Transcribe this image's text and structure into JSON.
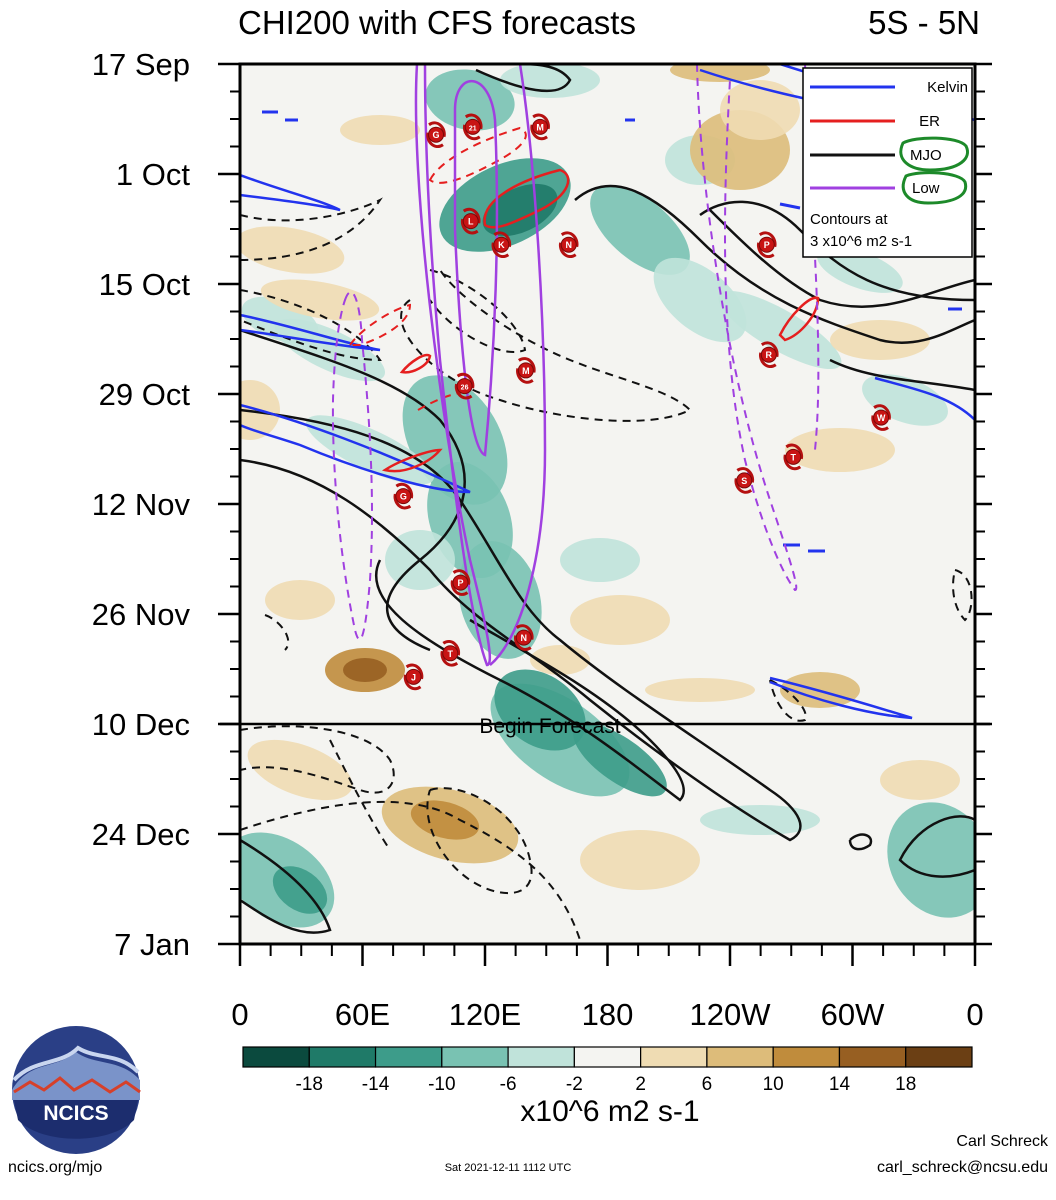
{
  "header": {
    "title": "CHI200 with CFS forecasts",
    "region": "5S - 5N"
  },
  "chart_data": {
    "type": "heatmap",
    "title": "CHI200 with CFS forecasts",
    "y_axis": {
      "ticks": [
        "17 Sep",
        "1 Oct",
        "15 Oct",
        "29 Oct",
        "12 Nov",
        "26 Nov",
        "10 Dec",
        "24 Dec",
        "7 Jan"
      ],
      "range": [
        "2021-09-17",
        "2022-01-07"
      ]
    },
    "x_axis": {
      "ticks": [
        "0",
        "60E",
        "120E",
        "180",
        "120W",
        "60W",
        "0"
      ],
      "range_deg_east": [
        0,
        360
      ]
    },
    "forecast_marker": {
      "date": "2021-12-10",
      "label": "Begin Forecast"
    },
    "colorbar": {
      "labels": [
        "-18",
        "-14",
        "-10",
        "-6",
        "-2",
        "2",
        "6",
        "10",
        "14",
        "18"
      ],
      "colors": [
        "#0b4a3e",
        "#1f7a68",
        "#3d9c8a",
        "#79c2b2",
        "#c0e3da",
        "#f4f4f1",
        "#efdcb3",
        "#ddbc7a",
        "#c08c3c",
        "#975f22",
        "#6b3f14"
      ],
      "units": "x10^6 m2 s-1"
    },
    "legend": {
      "placement": "top-right",
      "entries": [
        {
          "name": "Kelvin",
          "color": "#2233ee"
        },
        {
          "name": "ER",
          "color": "#e51f1f"
        },
        {
          "name": "MJO",
          "color": "#111111"
        },
        {
          "name": "Low",
          "color": "#a040e0"
        }
      ],
      "note_line1": "Contours at",
      "note_line2": "3 x10^6 m2 s-1"
    },
    "storms": [
      {
        "label": "G",
        "lon": 96,
        "date": "2021-09-26"
      },
      {
        "label": "21",
        "lon": 114,
        "date": "2021-09-25"
      },
      {
        "label": "M",
        "lon": 147,
        "date": "2021-09-25"
      },
      {
        "label": "L",
        "lon": 113,
        "date": "2021-10-07"
      },
      {
        "label": "K",
        "lon": 128,
        "date": "2021-10-10"
      },
      {
        "label": "N",
        "lon": 161,
        "date": "2021-10-10"
      },
      {
        "label": "P",
        "lon": 258,
        "date": "2021-10-10"
      },
      {
        "label": "R",
        "lon": 259,
        "date": "2021-10-24"
      },
      {
        "label": "M",
        "lon": 140,
        "date": "2021-10-26"
      },
      {
        "label": "26",
        "lon": 110,
        "date": "2021-10-28"
      },
      {
        "label": "W",
        "lon": 314,
        "date": "2021-11-01"
      },
      {
        "label": "T",
        "lon": 271,
        "date": "2021-11-06"
      },
      {
        "label": "S",
        "lon": 247,
        "date": "2021-11-09"
      },
      {
        "label": "G",
        "lon": 80,
        "date": "2021-11-11"
      },
      {
        "label": "P",
        "lon": 108,
        "date": "2021-11-22"
      },
      {
        "label": "N",
        "lon": 139,
        "date": "2021-11-29"
      },
      {
        "label": "T",
        "lon": 103,
        "date": "2021-12-01"
      },
      {
        "label": "J",
        "lon": 85,
        "date": "2021-12-04"
      }
    ]
  },
  "logo": {
    "text": "NCICS"
  },
  "footer": {
    "url": "ncics.org/mjo",
    "timestamp": "Sat 2021-12-11 1112 UTC",
    "author": "Carl Schreck",
    "email": "carl_schreck@ncsu.edu"
  }
}
